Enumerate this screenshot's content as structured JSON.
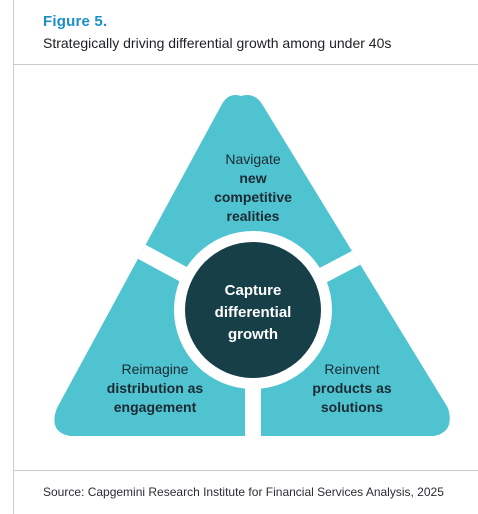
{
  "figure": {
    "label": "Figure 5.",
    "title": "Strategically driving differential growth among under 40s"
  },
  "diagram": {
    "center": {
      "lines": [
        "Capture",
        "differential",
        "growth"
      ]
    },
    "segments": {
      "top": {
        "lines": [
          "Navigate",
          "new",
          "competitive",
          "realities"
        ]
      },
      "left": {
        "lines": [
          "Reimagine",
          "distribution as",
          "engagement"
        ]
      },
      "right": {
        "lines": [
          "Reinvent",
          "products as",
          "solutions"
        ]
      }
    },
    "colors": {
      "segment": "#4fc3cf",
      "center": "#163f48",
      "gap": "#ffffff"
    }
  },
  "source": "Source: Capgemini Research Institute for Financial Services Analysis, 2025"
}
